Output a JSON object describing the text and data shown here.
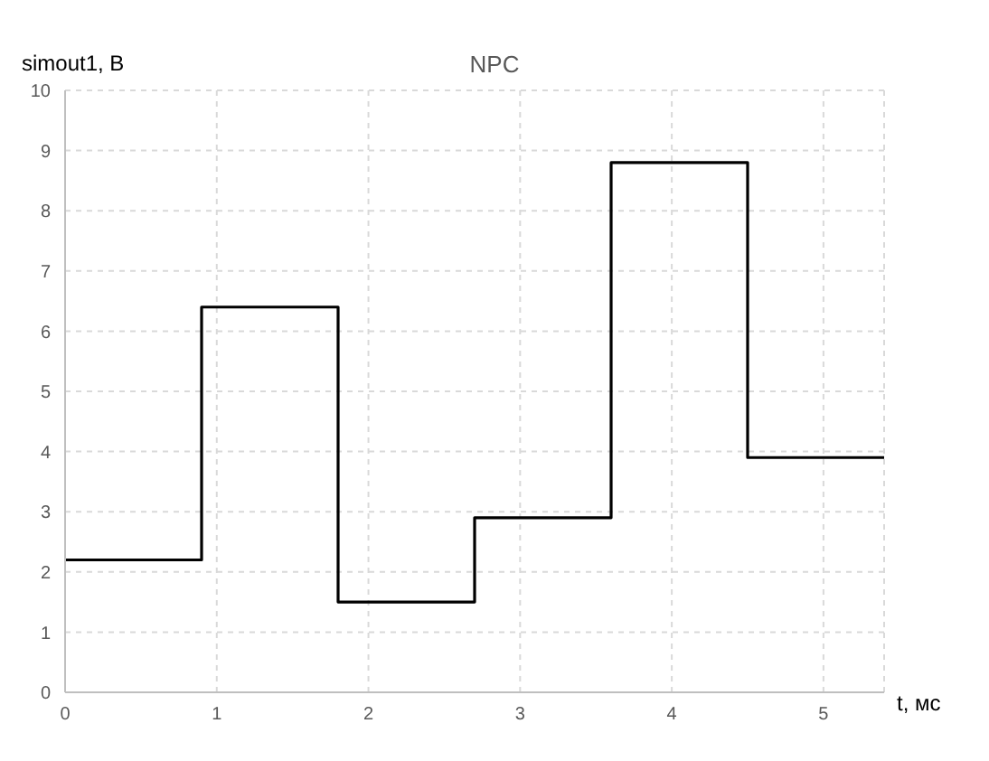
{
  "chart_data": {
    "type": "step",
    "title": "NPC",
    "xlabel": "t, мс",
    "ylabel": "simout1, B",
    "x": [
      0,
      0.9,
      1.8,
      2.7,
      3.6,
      4.5,
      5.4
    ],
    "series": [
      {
        "color": "#000000",
        "values": [
          2.2,
          6.4,
          1.5,
          2.9,
          8.8,
          3.9,
          3.9
        ]
      }
    ],
    "xlim": [
      0,
      5.4
    ],
    "xticks": [
      0,
      1,
      2,
      3,
      4,
      5
    ],
    "ylim": [
      0,
      10
    ],
    "yticks": [
      0,
      1,
      2,
      3,
      4,
      5,
      6,
      7,
      8,
      9,
      10
    ],
    "grid": true,
    "marker": "none",
    "line_style": "solid"
  }
}
